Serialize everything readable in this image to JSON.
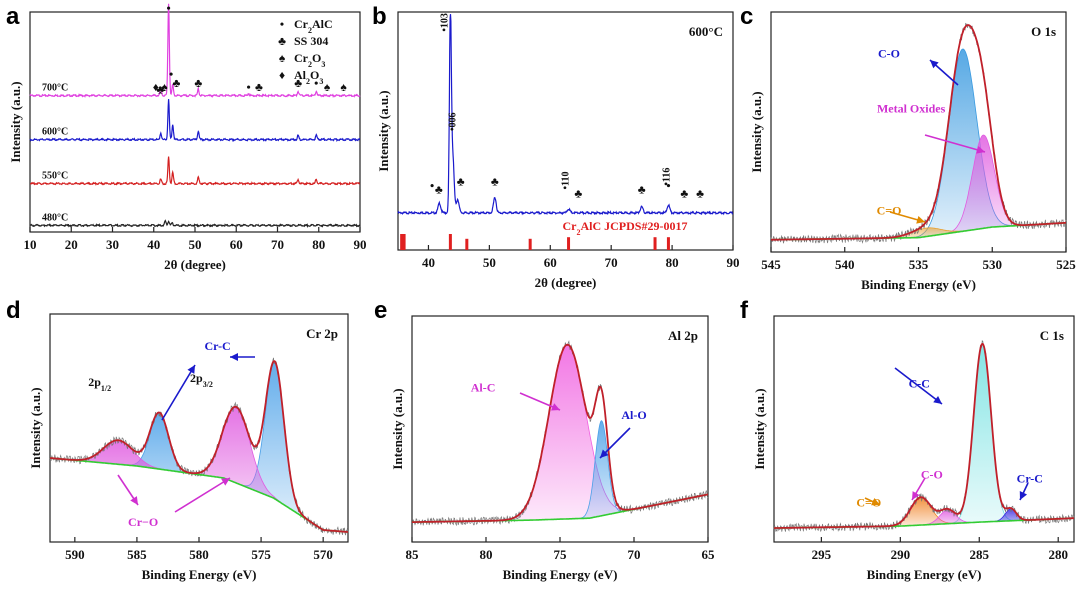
{
  "chart_data": [
    {
      "panel": "a",
      "type": "line",
      "xlabel": "2θ (degree)",
      "ylabel": "Intensity (a.u.)",
      "xlim": [
        10,
        90
      ],
      "xticks": [
        "10",
        "20",
        "30",
        "40",
        "50",
        "60",
        "70",
        "80",
        "90"
      ],
      "series": [
        {
          "name": "700°C",
          "color": "#e040e0",
          "offset": 0.62,
          "peaks": [
            [
              41.7,
              0.03
            ],
            [
              43.6,
              0.42
            ],
            [
              44.6,
              0.05
            ],
            [
              50.8,
              0.03
            ],
            [
              63.0,
              0.01
            ],
            [
              75.0,
              0.02
            ],
            [
              79.4,
              0.02
            ]
          ]
        },
        {
          "name": "600°C",
          "color": "#1a1acc",
          "offset": 0.42,
          "peaks": [
            [
              41.7,
              0.03
            ],
            [
              43.6,
              0.18
            ],
            [
              44.6,
              0.07
            ],
            [
              50.8,
              0.04
            ],
            [
              75.0,
              0.02
            ],
            [
              79.4,
              0.02
            ]
          ]
        },
        {
          "name": "550°C",
          "color": "#d42020",
          "offset": 0.22,
          "peaks": [
            [
              41.7,
              0.02
            ],
            [
              43.6,
              0.12
            ],
            [
              44.6,
              0.05
            ],
            [
              50.8,
              0.03
            ],
            [
              75.0,
              0.02
            ],
            [
              79.4,
              0.02
            ]
          ]
        },
        {
          "name": "480°C",
          "color": "#222222",
          "offset": 0.03,
          "peaks": [
            [
              42.8,
              0.02
            ],
            [
              43.6,
              0.02
            ],
            [
              44.5,
              0.01
            ]
          ]
        }
      ],
      "legend": [
        {
          "symbol": "•",
          "label_main": "Cr",
          "label_sub": "2",
          "label_rest": "AlC"
        },
        {
          "symbol": "♣",
          "label_main": "SS 304",
          "label_sub": "",
          "label_rest": ""
        },
        {
          "symbol": "♠",
          "label_main": "Cr",
          "label_sub": "2",
          "label_rest": "O",
          "label_sub2": "3"
        },
        {
          "symbol": "♦",
          "label_main": "Al",
          "label_sub": "2",
          "label_rest": "O",
          "label_sub2": "3"
        }
      ],
      "markers": [
        {
          "x": 43.6,
          "y": 1.0,
          "s": "•"
        },
        {
          "x": 44.2,
          "y": 0.7,
          "s": "•"
        },
        {
          "x": 45.5,
          "y": 0.66,
          "s": "♣"
        },
        {
          "x": 40.5,
          "y": 0.64,
          "s": "♦"
        },
        {
          "x": 41.6,
          "y": 0.63,
          "s": "♣"
        },
        {
          "x": 42.6,
          "y": 0.64,
          "s": "♠"
        },
        {
          "x": 50.8,
          "y": 0.66,
          "s": "♣"
        },
        {
          "x": 63.0,
          "y": 0.64,
          "s": "•"
        },
        {
          "x": 65.5,
          "y": 0.64,
          "s": "♣"
        },
        {
          "x": 75.0,
          "y": 0.66,
          "s": "♣"
        },
        {
          "x": 79.4,
          "y": 0.66,
          "s": "•"
        },
        {
          "x": 82.0,
          "y": 0.64,
          "s": "♠"
        },
        {
          "x": 86.0,
          "y": 0.64,
          "s": "♠"
        }
      ]
    },
    {
      "panel": "b",
      "type": "line",
      "title": "600°C",
      "xlabel": "2θ (degree)",
      "ylabel": "Intensity (a.u.)",
      "xlim": [
        35,
        90
      ],
      "xticks": [
        "40",
        "50",
        "60",
        "70",
        "80",
        "90"
      ],
      "color": "#1a1acc",
      "peaks": [
        [
          41.8,
          0.05
        ],
        [
          43.6,
          1.0
        ],
        [
          44.0,
          0.28
        ],
        [
          44.8,
          0.07
        ],
        [
          50.9,
          0.08
        ],
        [
          63.0,
          0.02
        ],
        [
          75.0,
          0.03
        ],
        [
          79.4,
          0.04
        ]
      ],
      "peak_labels": [
        {
          "x": 43.1,
          "y": 0.93,
          "t": "103"
        },
        {
          "x": 44.4,
          "y": 0.42,
          "t": "006"
        },
        {
          "x": 63.0,
          "y": 0.12,
          "t": "110"
        },
        {
          "x": 79.6,
          "y": 0.14,
          "t": "116"
        }
      ],
      "markers": [
        {
          "x": 40.6,
          "y": 0.12,
          "s": "•"
        },
        {
          "x": 41.7,
          "y": 0.1,
          "s": "♣"
        },
        {
          "x": 45.3,
          "y": 0.14,
          "s": "♣"
        },
        {
          "x": 50.9,
          "y": 0.14,
          "s": "♣"
        },
        {
          "x": 64.6,
          "y": 0.08,
          "s": "♣"
        },
        {
          "x": 75.0,
          "y": 0.1,
          "s": "♣"
        },
        {
          "x": 79.4,
          "y": 0.12,
          "s": "•"
        },
        {
          "x": 82.0,
          "y": 0.08,
          "s": "♣"
        },
        {
          "x": 84.6,
          "y": 0.08,
          "s": "♣"
        }
      ],
      "ref_label_main": "Cr",
      "ref_label_sub": "2",
      "ref_label_rest": "AlC  JCPDS#29-0017",
      "ref_color": "#e02020",
      "ref_lines": [
        [
          35.6,
          1.0
        ],
        [
          36.0,
          1.0
        ],
        [
          43.6,
          1.0
        ],
        [
          46.3,
          0.7
        ],
        [
          56.7,
          0.7
        ],
        [
          63.0,
          0.8
        ],
        [
          77.2,
          0.8
        ],
        [
          79.4,
          0.8
        ]
      ]
    },
    {
      "panel": "c",
      "type": "area",
      "title": "O 1s",
      "xlabel": "Binding Energy (eV)",
      "ylabel": "Intensity (a.u.)",
      "xlim": [
        545,
        525
      ],
      "ylim": [
        0,
        1.0
      ],
      "xticks": [
        "545",
        "540",
        "535",
        "530",
        "525"
      ],
      "background": [
        [
          545,
          0.02
        ],
        [
          535,
          0.03
        ],
        [
          530,
          0.08
        ],
        [
          525,
          0.1
        ]
      ],
      "components": [
        {
          "name": "C-O",
          "center": 532.0,
          "height": 0.86,
          "sigma": 0.95,
          "color": "#3a9ae0"
        },
        {
          "name": "Metal Oxides",
          "center": 530.6,
          "height": 0.44,
          "sigma": 0.75,
          "color": "#e05ce0"
        },
        {
          "name": "C=O",
          "center": 534.5,
          "height": 0.04,
          "sigma": 1.0,
          "color": "#e8a030"
        }
      ],
      "envelope_color": "#c0202a",
      "labels": [
        {
          "t": "C-O",
          "x": 537.0,
          "y": 0.88,
          "color": "#1a1acc"
        },
        {
          "t": "Metal Oxides",
          "x": 535.5,
          "y": 0.62,
          "color": "#d030d0"
        },
        {
          "t": "C=O",
          "x": 537.0,
          "y": 0.14,
          "color": "#e08a00"
        }
      ]
    },
    {
      "panel": "d",
      "type": "area",
      "title": "Cr 2p",
      "xlabel": "Binding Energy (eV)",
      "ylabel": "Intensity (a.u.)",
      "xlim": [
        592,
        568
      ],
      "ylim": [
        0,
        1.0
      ],
      "xticks": [
        "590",
        "585",
        "580",
        "575",
        "570"
      ],
      "background": [
        [
          592,
          0.38
        ],
        [
          585,
          0.34
        ],
        [
          578,
          0.28
        ],
        [
          574,
          0.18
        ],
        [
          570,
          0.02
        ],
        [
          568,
          0.01
        ]
      ],
      "components": [
        {
          "name": "Cr-C 2p3/2",
          "center": 573.9,
          "height": 0.68,
          "sigma": 0.75,
          "color": "#4aa0e8"
        },
        {
          "name": "Cr-O 2p3/2",
          "center": 577.0,
          "height": 0.38,
          "sigma": 1.1,
          "color": "#e05ce0"
        },
        {
          "name": "Cr-C 2p1/2",
          "center": 583.2,
          "height": 0.28,
          "sigma": 0.75,
          "color": "#4aa0e8"
        },
        {
          "name": "Cr-O 2p1/2",
          "center": 586.5,
          "height": 0.12,
          "sigma": 1.2,
          "color": "#e05ce0"
        }
      ],
      "envelope_color": "#c0202a",
      "labels": [
        {
          "t": "Cr-C",
          "x": 578.5,
          "y": 0.92,
          "color": "#1a1acc"
        },
        {
          "t": "Cr−O",
          "x": 584.5,
          "y": 0.04,
          "color": "#d030d0"
        },
        {
          "t": "2p",
          "sub": "1/2",
          "x": 588.0,
          "y": 0.74,
          "color": "#111"
        },
        {
          "t": "2p",
          "sub": "3/2",
          "x": 579.8,
          "y": 0.76,
          "color": "#111"
        }
      ]
    },
    {
      "panel": "e",
      "type": "area",
      "title": "Al 2p",
      "xlabel": "Binding Energy (eV)",
      "ylabel": "Intensity (a.u.)",
      "xlim": [
        85,
        65
      ],
      "ylim": [
        0,
        1.0
      ],
      "xticks": [
        "85",
        "80",
        "75",
        "70",
        "65"
      ],
      "background": [
        [
          85,
          0.06
        ],
        [
          77,
          0.07
        ],
        [
          73,
          0.08
        ],
        [
          69,
          0.14
        ],
        [
          65,
          0.2
        ]
      ],
      "components": [
        {
          "name": "Al-C",
          "center": 74.5,
          "height": 0.88,
          "sigma": 1.25,
          "color": "#f060e0"
        },
        {
          "name": "Al-O",
          "center": 72.2,
          "height": 0.48,
          "sigma": 0.42,
          "color": "#4aa0e8"
        }
      ],
      "envelope_color": "#c0202a",
      "labels": [
        {
          "t": "Al-C",
          "x": 80.2,
          "y": 0.72,
          "color": "#d030d0"
        },
        {
          "t": "Al-O",
          "x": 70.0,
          "y": 0.58,
          "color": "#1a1acc"
        }
      ]
    },
    {
      "panel": "f",
      "type": "area",
      "title": "C 1s",
      "xlabel": "Binding Energy (eV)",
      "ylabel": "Intensity (a.u.)",
      "xlim": [
        298,
        279
      ],
      "ylim": [
        0,
        1.0
      ],
      "xticks": [
        "295",
        "290",
        "285",
        "280"
      ],
      "background": [
        [
          298,
          0.03
        ],
        [
          290,
          0.04
        ],
        [
          285,
          0.06
        ],
        [
          279,
          0.08
        ]
      ],
      "components": [
        {
          "name": "C-C",
          "center": 284.8,
          "height": 0.9,
          "sigma": 0.55,
          "color": "#6ee0e0"
        },
        {
          "name": "C=O",
          "center": 288.7,
          "height": 0.14,
          "sigma": 0.65,
          "color": "#f08020"
        },
        {
          "name": "C-O",
          "center": 287.0,
          "height": 0.07,
          "sigma": 0.5,
          "color": "#e05ce0"
        },
        {
          "name": "Cr-C",
          "center": 283.0,
          "height": 0.06,
          "sigma": 0.35,
          "color": "#3a2ae0"
        }
      ],
      "envelope_color": "#c0202a",
      "labels": [
        {
          "t": "C-C",
          "x": 288.8,
          "y": 0.74,
          "color": "#1a1acc"
        },
        {
          "t": "C-O",
          "x": 288.0,
          "y": 0.28,
          "color": "#d030d0"
        },
        {
          "t": "C=O",
          "x": 292.0,
          "y": 0.14,
          "color": "#e08a00"
        },
        {
          "t": "Cr-C",
          "x": 281.8,
          "y": 0.26,
          "color": "#1a1acc"
        }
      ]
    }
  ]
}
